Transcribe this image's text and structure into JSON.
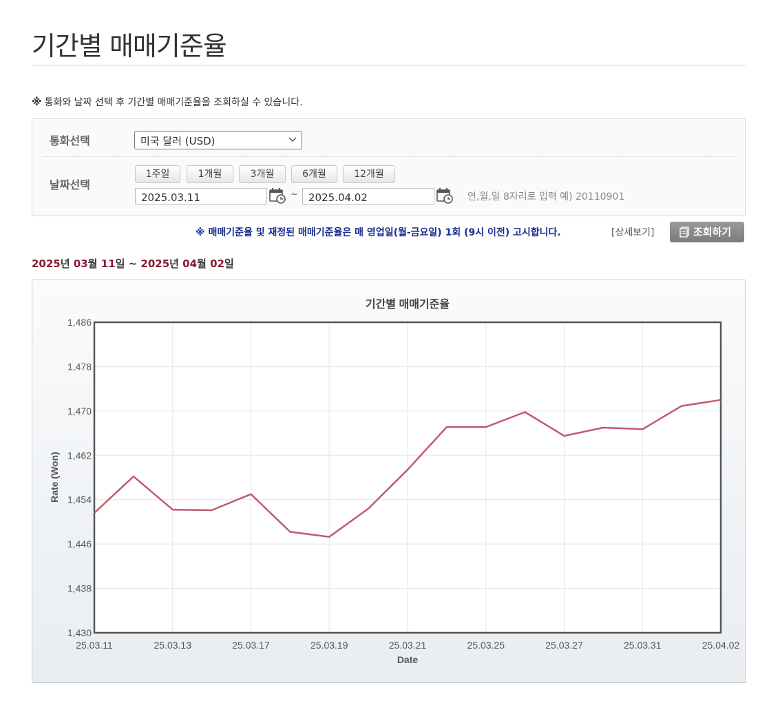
{
  "page": {
    "title": "기간별 매매기준율"
  },
  "notice": {
    "mark": "※",
    "text": "통화와 날짜 선택 후 기간별 매매기준율을 조회하실 수 있습니다."
  },
  "search": {
    "currency_label": "통화선택",
    "currency_value": "미국 달러 (USD)",
    "date_label": "날짜선택",
    "period_buttons": [
      "1주일",
      "1개월",
      "3개월",
      "6개월",
      "12개월"
    ],
    "start_date": "2025.03.11",
    "tilde": "~",
    "end_date": "2025.04.02",
    "date_hint": "연,월,일 8자리로 입력 예) 20110901",
    "announce": "※ 매매기준율 및 재정된 매매기준율은 매 영업일(월-금요일) 1회 (9시 이전) 고시합니다.",
    "detail_link": "[상세보기]",
    "search_button": "조회하기"
  },
  "range_caption": {
    "y1": "2025",
    "u1": "년 ",
    "m1": "03",
    "u2": "월 ",
    "d1": "11",
    "u3": "일 ~ ",
    "y2": "2025",
    "u4": "년 ",
    "m2": "04",
    "u5": "월 ",
    "d2": "02",
    "u6": "일"
  },
  "colors": {
    "line": "#c25a6a",
    "announce": "#1a2d8f",
    "caption_highlight": "#8a1a32"
  },
  "chart_data": {
    "type": "line",
    "title": "기간별 매매기준율",
    "xlabel": "Date",
    "ylabel": "Rate (Won)",
    "ylim": [
      1430,
      1486
    ],
    "yticks": [
      1430,
      1438,
      1446,
      1454,
      1462,
      1470,
      1478,
      1486
    ],
    "ytick_labels": [
      "1,430",
      "1,438",
      "1,446",
      "1,454",
      "1,462",
      "1,470",
      "1,478",
      "1,486"
    ],
    "xtick_labels": [
      "25.03.11",
      "25.03.13",
      "25.03.17",
      "25.03.19",
      "25.03.21",
      "25.03.25",
      "25.03.27",
      "25.03.31",
      "25.04.02"
    ],
    "x": [
      "25.03.11",
      "25.03.12",
      "25.03.13",
      "25.03.14",
      "25.03.17",
      "25.03.18",
      "25.03.19",
      "25.03.20",
      "25.03.21",
      "25.03.24",
      "25.03.25",
      "25.03.26",
      "25.03.27",
      "25.03.28",
      "25.03.31",
      "25.04.01",
      "25.04.02"
    ],
    "values": [
      1451.6,
      1458.2,
      1452.2,
      1452.1,
      1455.0,
      1448.2,
      1447.3,
      1452.4,
      1459.4,
      1467.1,
      1467.1,
      1469.8,
      1465.5,
      1467.0,
      1466.7,
      1470.9,
      1472.0
    ],
    "grid": true
  }
}
